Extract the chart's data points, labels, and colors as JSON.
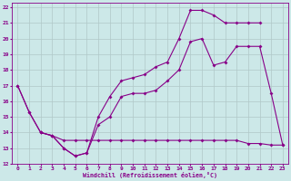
{
  "xlabel": "Windchill (Refroidissement éolien,°C)",
  "bg_color": "#cce8e8",
  "grid_color": "#b0c8c8",
  "line_color": "#880088",
  "xlim": [
    -0.5,
    23.5
  ],
  "ylim": [
    12,
    22.3
  ],
  "xticks": [
    0,
    1,
    2,
    3,
    4,
    5,
    6,
    7,
    8,
    9,
    10,
    11,
    12,
    13,
    14,
    15,
    16,
    17,
    18,
    19,
    20,
    21,
    22,
    23
  ],
  "yticks": [
    12,
    13,
    14,
    15,
    16,
    17,
    18,
    19,
    20,
    21,
    22
  ],
  "line1_x": [
    0,
    1,
    2,
    3,
    4,
    5,
    6,
    7,
    8,
    9,
    10,
    11,
    12,
    13,
    14,
    15,
    16,
    17,
    18,
    19,
    20,
    21
  ],
  "line1_y": [
    17,
    15.3,
    14.0,
    13.8,
    13.0,
    12.5,
    12.7,
    15.0,
    16.3,
    17.3,
    17.5,
    17.7,
    18.2,
    18.5,
    20.0,
    21.8,
    21.8,
    21.5,
    21.0,
    21.0,
    21.0,
    21.0
  ],
  "line2_x": [
    0,
    1,
    2,
    3,
    4,
    5,
    6,
    7,
    8,
    9,
    10,
    11,
    12,
    13,
    14,
    15,
    16,
    17,
    18,
    19,
    20,
    21,
    22,
    23
  ],
  "line2_y": [
    17,
    15.3,
    14.0,
    13.8,
    13.0,
    12.5,
    12.7,
    14.5,
    15.0,
    16.3,
    16.5,
    16.5,
    16.7,
    17.3,
    18.0,
    19.8,
    20.0,
    18.3,
    18.5,
    19.5,
    19.5,
    19.5,
    16.5,
    13.2
  ],
  "line3_x": [
    2,
    3,
    4,
    5,
    6,
    7,
    8,
    9,
    10,
    11,
    12,
    13,
    14,
    15,
    16,
    17,
    18,
    19,
    20,
    21,
    22,
    23
  ],
  "line3_y": [
    14.0,
    13.8,
    13.5,
    13.5,
    13.5,
    13.5,
    13.5,
    13.5,
    13.5,
    13.5,
    13.5,
    13.5,
    13.5,
    13.5,
    13.5,
    13.5,
    13.5,
    13.5,
    13.3,
    13.3,
    13.2,
    13.2
  ]
}
